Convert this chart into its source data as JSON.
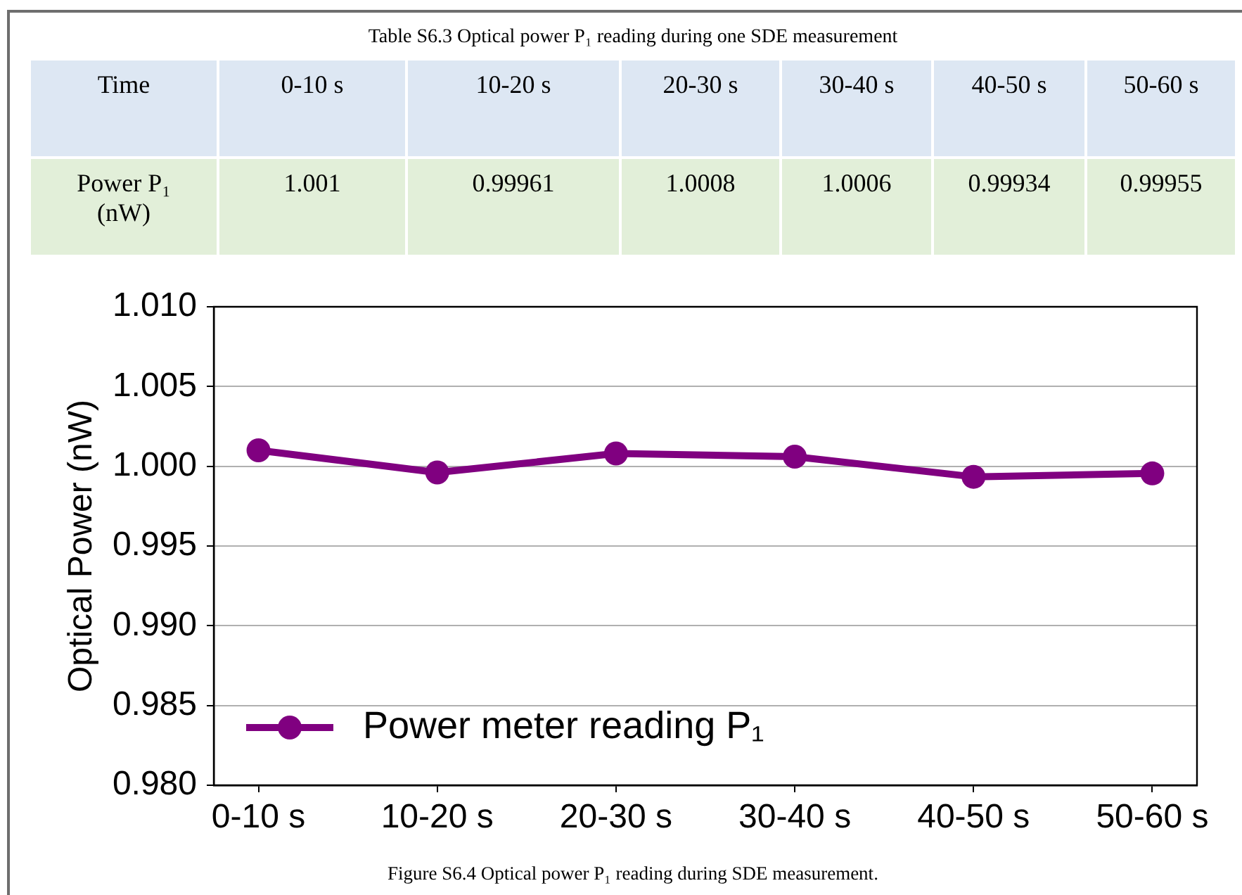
{
  "chart_data": {
    "type": "line",
    "annotations": [
      "Table S6.3 Optical power P₁ reading during one SDE measurement",
      "Time",
      "Power P₁ (nW)",
      "Figure S6.4 Optical power P₁ reading during SDE measurement."
    ],
    "categories": [
      "0-10 s",
      "10-20 s",
      "20-30 s",
      "30-40 s",
      "40-50 s",
      "50-60 s"
    ],
    "series": [
      {
        "name": "Power meter reading P₁",
        "color": "#800080",
        "values": [
          1.001,
          0.99961,
          1.0008,
          1.0006,
          0.99934,
          0.99955
        ]
      }
    ],
    "ylabel": "Optical Power (nW)",
    "ylim": [
      0.98,
      1.01
    ],
    "yticks": [
      {
        "value": 0.98,
        "label": "0.980"
      },
      0.985,
      {
        "value": 0.99,
        "label": "0.990"
      },
      0.995,
      {
        "value": 1,
        "label": "1.000"
      },
      1.005,
      {
        "value": 1.01,
        "label": "1.010"
      }
    ],
    "grid": "y",
    "legend": "bottom left",
    "marker": "circle",
    "line_style": "solid",
    "data_labels": true
  }
}
